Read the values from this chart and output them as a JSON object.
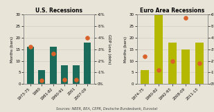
{
  "us_title": "U.S. Recessions",
  "euro_title": "Euro Area Recessions",
  "us_categories": [
    "1973-75",
    "1980",
    "1981-82",
    "1990-91",
    "2001",
    "2007-09"
  ],
  "us_bar_values": [
    16,
    6,
    16,
    8,
    8,
    18
  ],
  "us_dot_values": [
    3.2,
    0.3,
    2.6,
    0.4,
    0.4,
    4.0
  ],
  "euro_categories": [
    "1974-75",
    "1980-82",
    "1992-93",
    "2008-09",
    "2011-13"
  ],
  "euro_bar_values": [
    6,
    30,
    18,
    15,
    18
  ],
  "euro_dot_values": [
    2.4,
    1.2,
    2.0,
    5.7,
    1.8
  ],
  "bar_color_us": "#1a6b5a",
  "bar_color_euro": "#b5b800",
  "dot_color": "#d9622b",
  "ylabel_left": "Months (bars)",
  "ylabel_right": "GDP Loss (dots)",
  "ylim_left": [
    0,
    30
  ],
  "ylim_right": [
    0,
    6
  ],
  "yticks_left": [
    0,
    5,
    10,
    15,
    20,
    25,
    30
  ],
  "yticks_right_vals": [
    0,
    1,
    2,
    3,
    4,
    5,
    6
  ],
  "yticks_right_labels": [
    "0%",
    "-1%",
    "-2%",
    "-3%",
    "-4%",
    "-5%",
    "-6%"
  ],
  "source_text": "Sources: NBER, BEA, CEPR, Deutsche Bundesbank, Eurostat",
  "background_color": "#e8e4d8",
  "gridcolor": "#c8c4b8"
}
